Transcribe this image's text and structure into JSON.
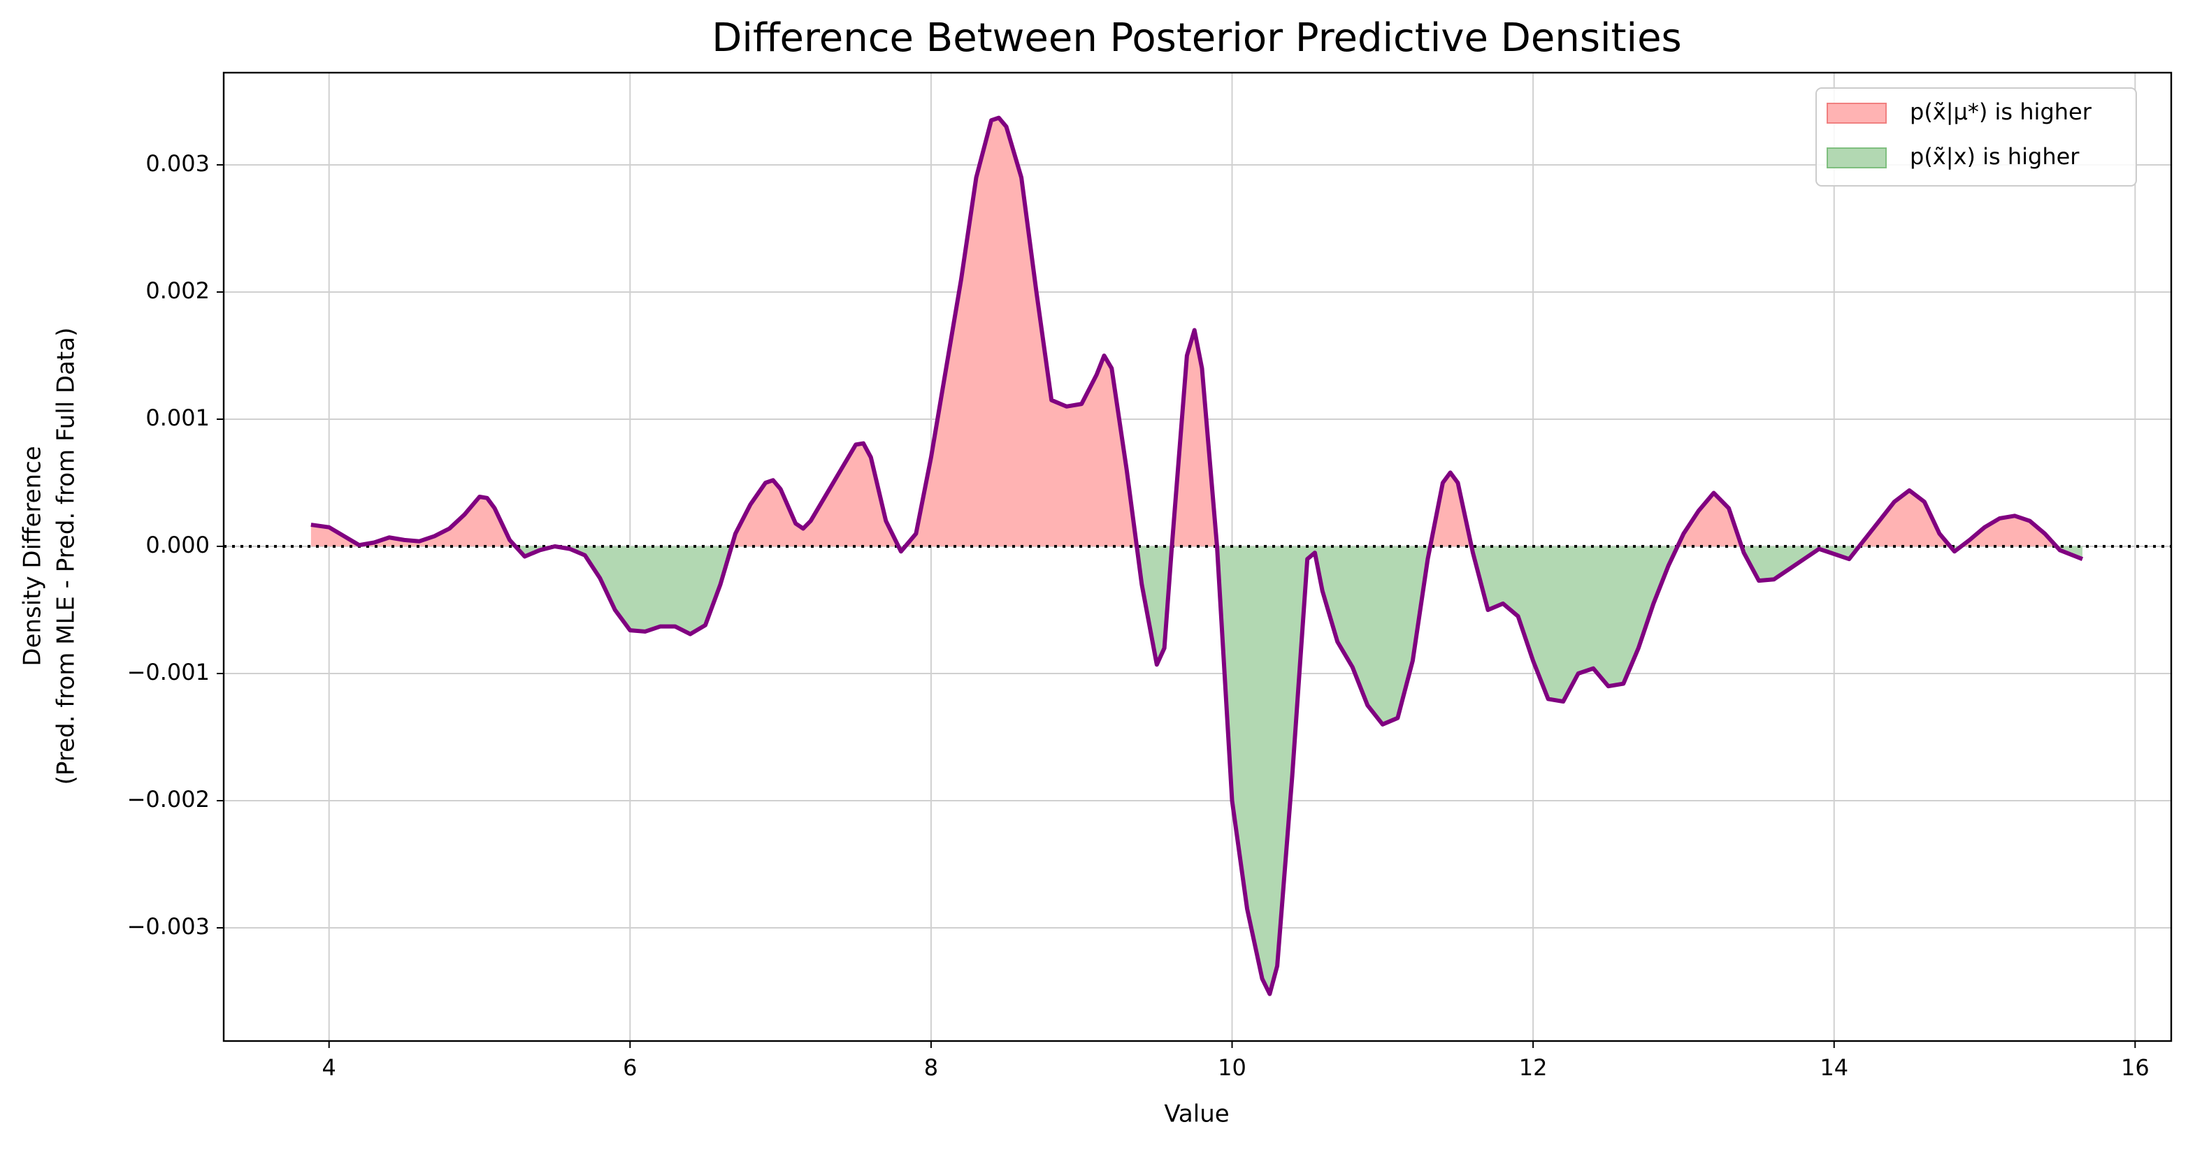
{
  "chart_data": {
    "type": "area-diff",
    "title": "Difference Between Posterior Predictive Densities",
    "xlabel": "Value",
    "ylabel": [
      "Density Difference",
      "(Pred. from MLE - Pred. from Full Data)"
    ],
    "x": [
      3.88,
      4.0,
      4.1,
      4.2,
      4.3,
      4.4,
      4.5,
      4.6,
      4.7,
      4.8,
      4.9,
      5.0,
      5.05,
      5.1,
      5.2,
      5.3,
      5.4,
      5.5,
      5.6,
      5.7,
      5.8,
      5.9,
      6.0,
      6.1,
      6.2,
      6.3,
      6.4,
      6.5,
      6.6,
      6.7,
      6.8,
      6.9,
      6.95,
      7.0,
      7.1,
      7.15,
      7.2,
      7.3,
      7.4,
      7.5,
      7.55,
      7.6,
      7.7,
      7.8,
      7.9,
      8.0,
      8.1,
      8.2,
      8.3,
      8.4,
      8.45,
      8.5,
      8.6,
      8.7,
      8.8,
      8.9,
      9.0,
      9.1,
      9.15,
      9.2,
      9.3,
      9.4,
      9.5,
      9.55,
      9.6,
      9.7,
      9.75,
      9.8,
      9.9,
      10.0,
      10.1,
      10.2,
      10.25,
      10.3,
      10.4,
      10.5,
      10.55,
      10.6,
      10.7,
      10.8,
      10.9,
      11.0,
      11.1,
      11.2,
      11.3,
      11.4,
      11.45,
      11.5,
      11.6,
      11.7,
      11.8,
      11.9,
      12.0,
      12.1,
      12.2,
      12.3,
      12.4,
      12.5,
      12.6,
      12.7,
      12.8,
      12.9,
      13.0,
      13.1,
      13.2,
      13.3,
      13.4,
      13.5,
      13.6,
      13.7,
      13.8,
      13.9,
      14.0,
      14.1,
      14.2,
      14.3,
      14.4,
      14.5,
      14.6,
      14.7,
      14.8,
      14.9,
      15.0,
      15.1,
      15.2,
      15.3,
      15.4,
      15.5,
      15.65
    ],
    "values": [
      0.00017,
      0.00015,
      8e-05,
      1e-05,
      3e-05,
      7e-05,
      5e-05,
      4e-05,
      8e-05,
      0.00014,
      0.00025,
      0.00039,
      0.00038,
      0.0003,
      5e-05,
      -8e-05,
      -3e-05,
      0.0,
      -2e-05,
      -7e-05,
      -0.00025,
      -0.0005,
      -0.00066,
      -0.00067,
      -0.00063,
      -0.00063,
      -0.00069,
      -0.00062,
      -0.0003,
      0.0001,
      0.00033,
      0.0005,
      0.00052,
      0.00045,
      0.00018,
      0.00014,
      0.0002,
      0.0004,
      0.0006,
      0.0008,
      0.00081,
      0.0007,
      0.0002,
      -4e-05,
      0.0001,
      0.0007,
      0.0014,
      0.0021,
      0.0029,
      0.00335,
      0.00337,
      0.0033,
      0.0029,
      0.002,
      0.00115,
      0.0011,
      0.00112,
      0.00135,
      0.0015,
      0.0014,
      0.0006,
      -0.0003,
      -0.00093,
      -0.0008,
      0.0,
      0.0015,
      0.0017,
      0.0014,
      0.0,
      -0.002,
      -0.00285,
      -0.0034,
      -0.00352,
      -0.0033,
      -0.0018,
      -0.0001,
      -5e-05,
      -0.00035,
      -0.00075,
      -0.00095,
      -0.00125,
      -0.0014,
      -0.00135,
      -0.0009,
      -0.0001,
      0.0005,
      0.00058,
      0.0005,
      -5e-05,
      -0.0005,
      -0.00045,
      -0.00055,
      -0.0009,
      -0.0012,
      -0.00122,
      -0.001,
      -0.00096,
      -0.0011,
      -0.00108,
      -0.0008,
      -0.00045,
      -0.00015,
      0.0001,
      0.00028,
      0.00042,
      0.0003,
      -5e-05,
      -0.00027,
      -0.00026,
      -0.00018,
      -0.0001,
      -2e-05,
      -6e-05,
      -0.0001,
      5e-05,
      0.0002,
      0.00035,
      0.00044,
      0.00035,
      0.0001,
      -4e-05,
      5e-05,
      0.00015,
      0.00022,
      0.00024,
      0.0002,
      0.0001,
      -3e-05,
      -0.0001
    ],
    "line_color": "#800080",
    "hline": 0,
    "fills": [
      {
        "name": "p(x̃|μ*) is higher",
        "color": "#ffb3b3",
        "edge": "#f08080",
        "where": "above"
      },
      {
        "name": "p(x̃|x) is higher",
        "color": "#b2d8b2",
        "edge": "#7fbf7f",
        "where": "below"
      }
    ],
    "xlim": [
      3.3,
      16.24
    ],
    "ylim": [
      -0.00389,
      0.003725
    ],
    "xticks": [
      4,
      6,
      8,
      10,
      12,
      14,
      16
    ],
    "yticks": [
      {
        "value": -0.003,
        "label": "−0.003"
      },
      {
        "value": -0.002,
        "label": "−0.002"
      },
      {
        "value": -0.001,
        "label": "−0.001"
      },
      {
        "value": 0,
        "label": "0.000"
      },
      0.001,
      0.002,
      0.003
    ],
    "grid": true,
    "legend": "upper right"
  }
}
